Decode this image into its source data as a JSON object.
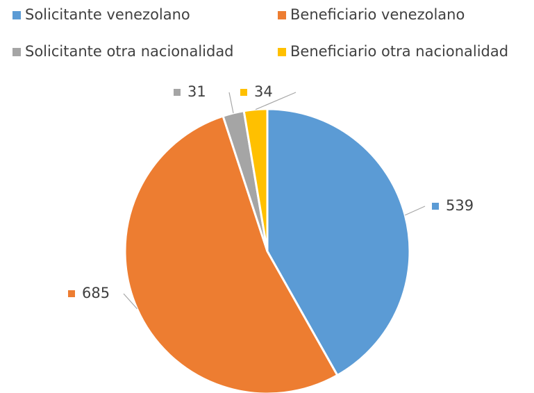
{
  "chart_data": {
    "type": "pie",
    "categories": [
      "Solicitante venezolano",
      "Beneficiario venezolano",
      "Solicitante otra nacionalidad",
      "Beneficiario otra nacionalidad"
    ],
    "values": [
      539,
      685,
      31,
      34
    ],
    "colors": [
      "#5b9bd5",
      "#ed7d31",
      "#a5a5a5",
      "#ffc000"
    ],
    "legend": "top"
  }
}
